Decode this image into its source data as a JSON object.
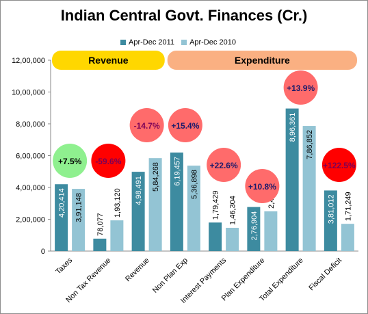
{
  "chart_data": {
    "type": "bar",
    "title": "Indian Central Govt. Finances (Cr.)",
    "categories": [
      "Taxes",
      "Non Tax Revenue",
      "Revenue",
      "Non Plan Exp",
      "Interest Payments",
      "Plan Expenditure",
      "Total Expenditure",
      "Fiscal Deficit"
    ],
    "series": [
      {
        "name": "Apr-Dec 2011",
        "values": [
          420414,
          78077,
          498491,
          619457,
          179429,
          276904,
          896361,
          381012
        ],
        "labels": [
          "4,20,414",
          "78,077",
          "4,98,491",
          "6,19,457",
          "1,79,429",
          "2,76,904",
          "8,96,361",
          "3,81,012"
        ],
        "color": "#3d8ba0"
      },
      {
        "name": "Apr-Dec 2010",
        "values": [
          391148,
          193120,
          584268,
          536898,
          146304,
          249954,
          786852,
          171249
        ],
        "labels": [
          "3,91,148",
          "1,93,120",
          "5,84,268",
          "5,36,898",
          "1,46,304",
          "2,49,954",
          "7,86,852",
          "1,71,249"
        ],
        "color": "#93c4d4"
      }
    ],
    "ylim": [
      0,
      1200000
    ],
    "yticks": [
      0,
      200000,
      400000,
      600000,
      800000,
      1000000,
      1200000
    ],
    "ytick_labels": [
      "0",
      "2,00,000",
      "4,00,000",
      "6,00,000",
      "8,00,000",
      "10,00,000",
      "12,00,000"
    ],
    "grid": false,
    "legend_position": "top",
    "change_annotations": [
      {
        "category": "Taxes",
        "text": "+7.5%",
        "color": "#8ff08f",
        "text_color": "#000000"
      },
      {
        "category": "Non Tax Revenue",
        "text": "-59.6%",
        "color": "#ff0000",
        "text_color": "#7a0057"
      },
      {
        "category": "Revenue",
        "text": "-14.7%",
        "color": "#ff6b6b",
        "text_color": "#7a0057"
      },
      {
        "category": "Non Plan Exp",
        "text": "+15.4%",
        "color": "#ff6b6b",
        "text_color": "#1a1a6b"
      },
      {
        "category": "Interest Payments",
        "text": "+22.6%",
        "color": "#ff6b6b",
        "text_color": "#1a1a6b"
      },
      {
        "category": "Plan Expenditure",
        "text": "+10.8%",
        "color": "#ff6b6b",
        "text_color": "#1a1a6b"
      },
      {
        "category": "Total Expenditure",
        "text": "+13.9%",
        "color": "#ff6b6b",
        "text_color": "#1a1a6b"
      },
      {
        "category": "Fiscal Deficit",
        "text": "+122.5%",
        "color": "#ff0000",
        "text_color": "#7a0057"
      }
    ],
    "group_banners": [
      {
        "label": "Revenue",
        "color": "#ffd700",
        "categories": [
          "Taxes",
          "Non Tax Revenue",
          "Revenue"
        ]
      },
      {
        "label": "Expenditure",
        "color": "#fab082",
        "categories": [
          "Non Plan Exp",
          "Interest Payments",
          "Plan Expenditure",
          "Total Expenditure",
          "Fiscal Deficit"
        ]
      }
    ]
  }
}
